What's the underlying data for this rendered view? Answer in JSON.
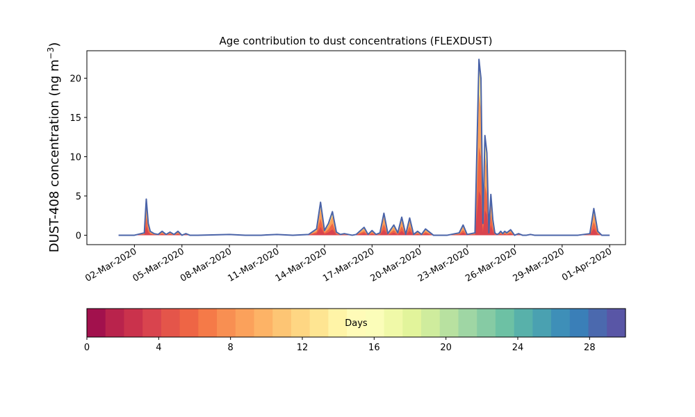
{
  "chart_data": {
    "type": "area",
    "title": "Age contribution to dust concentrations (FLEXDUST)",
    "ylabel": "DUST-408 concentration (ng m",
    "ylabel_sup": "−3",
    "ylabel_close": ")",
    "xlabel": "",
    "grid": false,
    "ylim": [
      -1.2,
      23.5
    ],
    "yticks": [
      0,
      5,
      10,
      15,
      20
    ],
    "xlim": [
      "2020-02-28",
      "2020-04-02"
    ],
    "xticks": [
      "2020-03-02",
      "2020-03-05",
      "2020-03-08",
      "2020-03-11",
      "2020-03-14",
      "2020-03-17",
      "2020-03-20",
      "2020-03-23",
      "2020-03-26",
      "2020-03-29",
      "2020-04-01"
    ],
    "xtick_labels": [
      "02-Mar-2020",
      "05-Mar-2020",
      "08-Mar-2020",
      "11-Mar-2020",
      "14-Mar-2020",
      "17-Mar-2020",
      "20-Mar-2020",
      "23-Mar-2020",
      "26-Mar-2020",
      "29-Mar-2020",
      "01-Apr-2020"
    ],
    "total_series": {
      "x": [
        "2020-03-01T00:00",
        "2020-03-02T00:00",
        "2020-03-02T15:00",
        "2020-03-02T18:00",
        "2020-03-02T21:00",
        "2020-03-03T00:00",
        "2020-03-03T06:00",
        "2020-03-03T12:00",
        "2020-03-03T18:00",
        "2020-03-04T00:00",
        "2020-03-04T06:00",
        "2020-03-04T12:00",
        "2020-03-04T18:00",
        "2020-03-05T00:00",
        "2020-03-05T06:00",
        "2020-03-05T12:00",
        "2020-03-06T00:00",
        "2020-03-08T00:00",
        "2020-03-09T00:00",
        "2020-03-10T00:00",
        "2020-03-11T00:00",
        "2020-03-12T00:00",
        "2020-03-13T00:00",
        "2020-03-13T12:00",
        "2020-03-13T18:00",
        "2020-03-14T00:00",
        "2020-03-14T06:00",
        "2020-03-14T12:00",
        "2020-03-14T18:00",
        "2020-03-15T00:00",
        "2020-03-15T06:00",
        "2020-03-15T18:00",
        "2020-03-16T00:00",
        "2020-03-16T12:00",
        "2020-03-16T18:00",
        "2020-03-17T00:00",
        "2020-03-17T06:00",
        "2020-03-17T12:00",
        "2020-03-17T18:00",
        "2020-03-18T00:00",
        "2020-03-18T09:00",
        "2020-03-18T15:00",
        "2020-03-18T21:00",
        "2020-03-19T03:00",
        "2020-03-19T09:00",
        "2020-03-19T15:00",
        "2020-03-19T21:00",
        "2020-03-20T03:00",
        "2020-03-20T09:00",
        "2020-03-20T21:00",
        "2020-03-21T06:00",
        "2020-03-21T18:00",
        "2020-03-22T12:00",
        "2020-03-22T18:00",
        "2020-03-23T00:00",
        "2020-03-23T12:00",
        "2020-03-23T18:00",
        "2020-03-23T21:00",
        "2020-03-24T00:00",
        "2020-03-24T03:00",
        "2020-03-24T06:00",
        "2020-03-24T09:00",
        "2020-03-24T12:00",
        "2020-03-24T15:00",
        "2020-03-24T18:00",
        "2020-03-24T21:00",
        "2020-03-25T00:00",
        "2020-03-25T03:00",
        "2020-03-25T06:00",
        "2020-03-25T09:00",
        "2020-03-25T12:00",
        "2020-03-25T18:00",
        "2020-03-26T00:00",
        "2020-03-26T06:00",
        "2020-03-26T12:00",
        "2020-03-26T18:00",
        "2020-03-27T00:00",
        "2020-03-27T06:00",
        "2020-03-27T12:00",
        "2020-03-28T00:00",
        "2020-03-29T00:00",
        "2020-03-30T00:00",
        "2020-03-30T18:00",
        "2020-03-31T00:00",
        "2020-03-31T06:00",
        "2020-03-31T12:00",
        "2020-03-31T18:00",
        "2020-04-01T00:00"
      ],
      "values": [
        0,
        0,
        0.3,
        4.6,
        1.5,
        0.5,
        0.2,
        0.1,
        0.5,
        0.1,
        0.4,
        0.1,
        0.5,
        0,
        0.2,
        0,
        0,
        0.1,
        0,
        0,
        0.1,
        0,
        0.1,
        0.8,
        4.2,
        0.6,
        1.5,
        3.0,
        0.4,
        0.1,
        0.2,
        0,
        0.1,
        1.0,
        0.1,
        0.6,
        0.1,
        0.3,
        2.8,
        0.2,
        1.3,
        0.3,
        2.3,
        0.1,
        2.2,
        0.1,
        0.5,
        0.1,
        0.8,
        0,
        0,
        0,
        0.3,
        1.3,
        0.1,
        0.3,
        22.4,
        20.0,
        1.5,
        12.7,
        10.5,
        0.3,
        5.2,
        2.0,
        0.3,
        0.1,
        0.2,
        0.5,
        0.2,
        0.5,
        0.3,
        0.7,
        0,
        0.2,
        0,
        0,
        0.1,
        0,
        0,
        0,
        0,
        0,
        0.2,
        3.4,
        0.5,
        0,
        0,
        0
      ],
      "color": "#4a63a8"
    },
    "age_bands_shown": [
      "1-3 days",
      "3-5 days",
      "5-8 days",
      "8-12 days"
    ],
    "colorbar": {
      "label": "Days",
      "min": 0,
      "max": 30,
      "ticks": [
        0,
        4,
        8,
        12,
        16,
        20,
        24,
        28
      ],
      "tick_labels": [
        "0",
        "4",
        "8",
        "12",
        "16",
        "20",
        "24",
        "28"
      ],
      "colors": [
        "#a2114d",
        "#b9234c",
        "#ca324c",
        "#d9444e",
        "#e4554a",
        "#ee6545",
        "#f57a48",
        "#f88f52",
        "#fba15b",
        "#fdb366",
        "#fdc574",
        "#fed683",
        "#fee592",
        "#fff4a7",
        "#fffbb8",
        "#fbfdb9",
        "#f0f9a8",
        "#e2f49b",
        "#cfec9d",
        "#b8e1a0",
        "#9fd6a4",
        "#86cba4",
        "#6dc1a4",
        "#58b1aa",
        "#4aa1b1",
        "#3e8fb8",
        "#3a7fb8",
        "#4b69ae",
        "#5956a6"
      ]
    }
  }
}
